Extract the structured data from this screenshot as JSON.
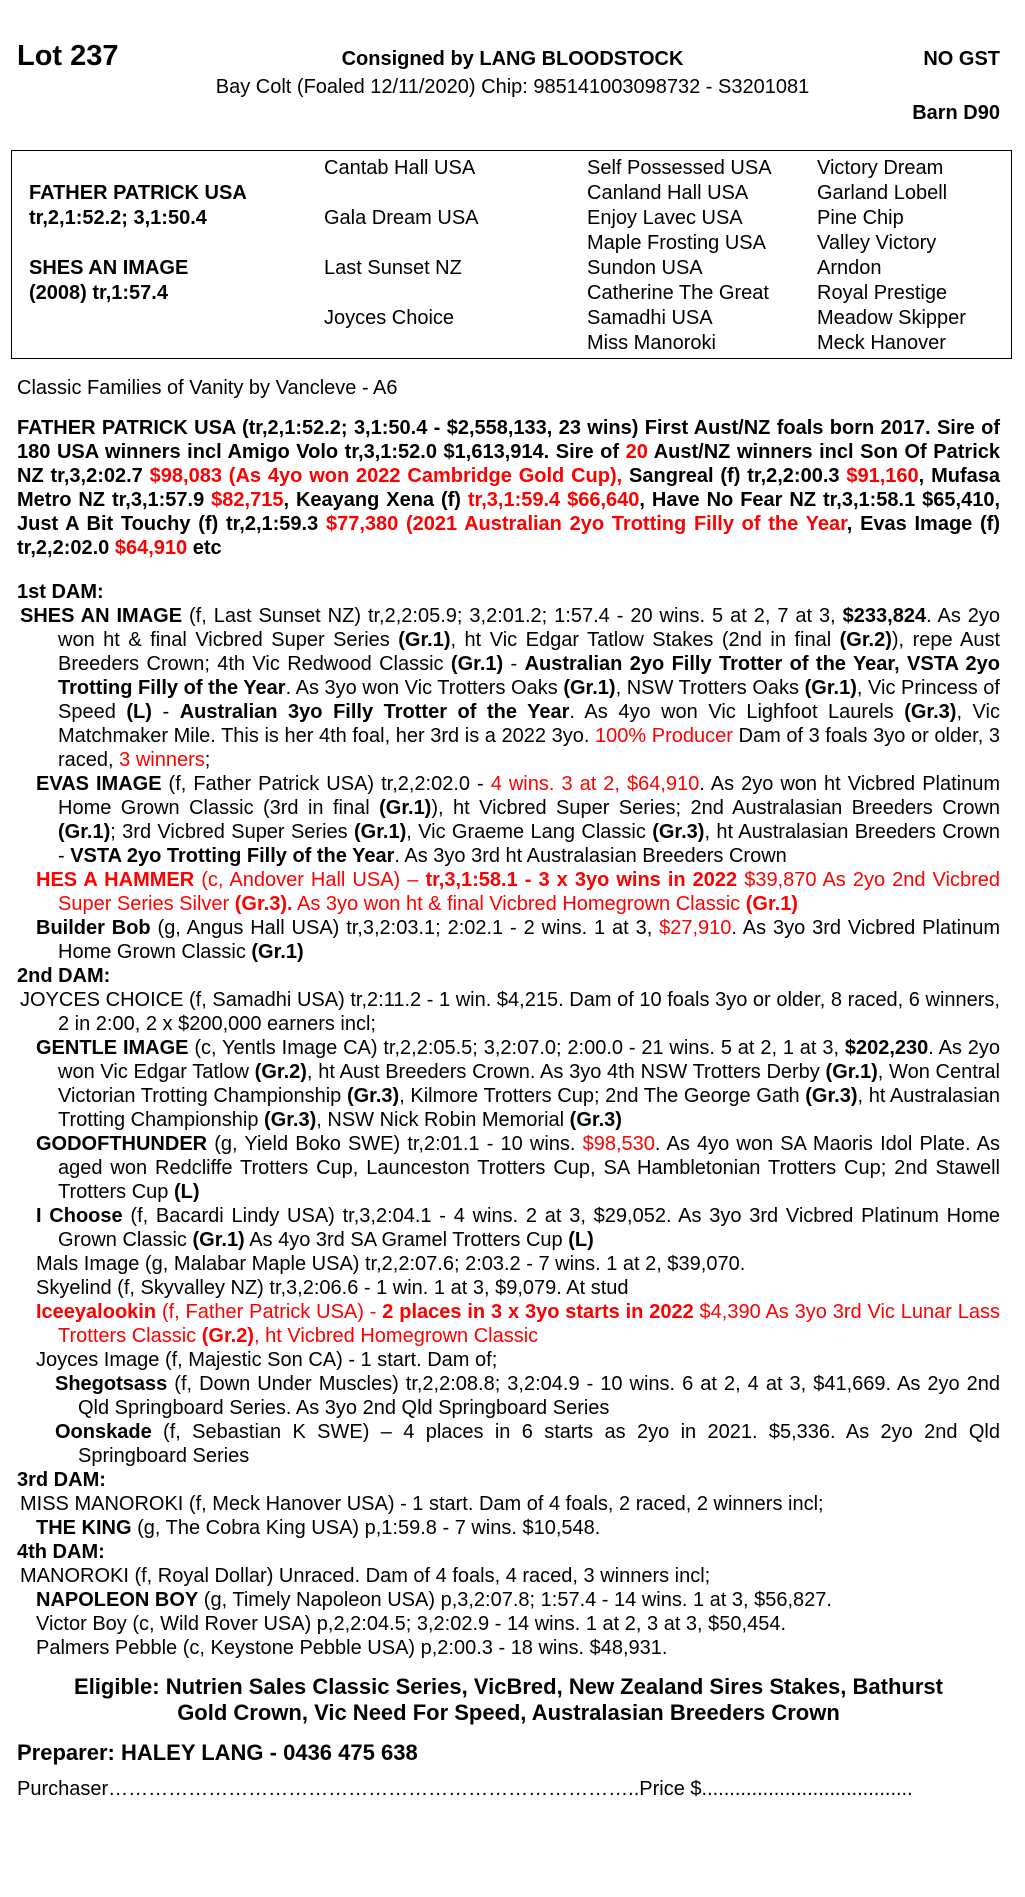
{
  "header": {
    "lot": "Lot 237",
    "consigned": "Consigned by LANG BLOODSTOCK",
    "gst": "NO GST",
    "description": "Bay Colt (Foaled 12/11/2020) Chip: 985141003098732 - S3201081",
    "barn": "Barn D90"
  },
  "pedigree": {
    "sire_name": "FATHER PATRICK USA",
    "sire_record": "tr,2,1:52.2; 3,1:50.4",
    "dam_name": "SHES AN IMAGE",
    "dam_record": "(2008) tr,1:57.4",
    "gen2": [
      "Cantab Hall USA",
      "Gala Dream USA",
      "Last Sunset NZ",
      "Joyces Choice"
    ],
    "gen3": [
      "Self Possessed USA",
      "Canland Hall USA",
      "Enjoy Lavec USA",
      "Maple Frosting USA",
      "Sundon USA",
      "Catherine The Great",
      "Samadhi USA",
      "Miss Manoroki"
    ],
    "gen4": [
      "Victory Dream",
      "Garland Lobell",
      "Pine Chip",
      "Valley Victory",
      "Arndon",
      "Royal Prestige",
      "Meadow Skipper",
      "Meck Hanover"
    ]
  },
  "family": "Classic Families of Vanity by Vancleve - A6",
  "sire_paragraph": [
    [
      "b",
      "FATHER PATRICK USA (tr,2,1:52.2; 3,1:50.4 - $2,558,133, 23 wins) First Aust/NZ foals born 2017. Sire of 180 USA winners incl Amigo Volo tr,3,1:52.0 $1,613,914. Sire of "
    ],
    [
      "br",
      "20"
    ],
    [
      "b",
      " Aust/NZ winners incl Son Of Patrick NZ tr,3,2:02.7 "
    ],
    [
      "br",
      "$98,083 (As 4yo won 2022 Cambridge Gold Cup),"
    ],
    [
      "b",
      " Sangreal (f) tr,2,2:00.3 "
    ],
    [
      "br",
      "$91,160"
    ],
    [
      "b",
      ", Mufasa Metro NZ tr,3,1:57.9 "
    ],
    [
      "br",
      "$82,715"
    ],
    [
      "b",
      ", Keayang Xena (f) "
    ],
    [
      "br",
      "tr,3,1:59.4 $66,640"
    ],
    [
      "b",
      ", Have No Fear NZ tr,3,1:58.1 $65,410, Just A Bit Touchy (f) tr,2,1:59.3 "
    ],
    [
      "br",
      "$77,380 (2021 Australian 2yo Trotting Filly of the Year"
    ],
    [
      "b",
      ", Evas Image (f) tr,2,2:02.0 "
    ],
    [
      "br",
      "$64,910"
    ],
    [
      "b",
      " etc"
    ]
  ],
  "sections": [
    {
      "heading": "1st DAM:",
      "entries": [
        {
          "level": 0,
          "segs": [
            [
              "b",
              "SHES AN IMAGE"
            ],
            [
              "",
              " (f, Last Sunset NZ) tr,2,2:05.9; 3,2:01.2; 1:57.4 - 20 wins. 5 at 2, 7 at 3, "
            ],
            [
              "b",
              "$233,824"
            ],
            [
              "",
              ". As 2yo won ht & final Vicbred Super Series "
            ],
            [
              "b",
              "(Gr.1)"
            ],
            [
              "",
              ", ht Vic Edgar Tatlow Stakes (2nd in final "
            ],
            [
              "b",
              "(Gr.2)"
            ],
            [
              "",
              "), repe Aust Breeders Crown; 4th Vic Redwood Classic "
            ],
            [
              "b",
              "(Gr.1)"
            ],
            [
              "",
              " - "
            ],
            [
              "b",
              "Australian 2yo Filly Trotter of the Year, VSTA 2yo Trotting Filly of the Year"
            ],
            [
              "",
              ". As 3yo won Vic Trotters Oaks "
            ],
            [
              "b",
              "(Gr.1)"
            ],
            [
              "",
              ", NSW Trotters Oaks "
            ],
            [
              "b",
              "(Gr.1)"
            ],
            [
              "",
              ", Vic Princess of Speed "
            ],
            [
              "b",
              "(L)"
            ],
            [
              "",
              " - "
            ],
            [
              "b",
              "Australian 3yo Filly Trotter of the Year"
            ],
            [
              "",
              ". As 4yo won Vic Lighfoot Laurels "
            ],
            [
              "b",
              "(Gr.3)"
            ],
            [
              "",
              ", Vic Matchmaker Mile. This is her 4th foal, her 3rd is a 2022 3yo. "
            ],
            [
              "r",
              "100% Producer"
            ],
            [
              "",
              " Dam of 3 foals 3yo or older, 3 raced, "
            ],
            [
              "r",
              "3 winners"
            ],
            [
              "",
              ";"
            ]
          ]
        },
        {
          "level": 1,
          "segs": [
            [
              "b",
              "EVAS IMAGE"
            ],
            [
              "",
              " (f, Father Patrick USA) tr,2,2:02.0 - "
            ],
            [
              "r",
              "4 wins. 3 at 2, $64,910"
            ],
            [
              "",
              ". As 2yo won ht Vicbred Platinum Home Grown Classic (3rd in final "
            ],
            [
              "b",
              "(Gr.1)"
            ],
            [
              "",
              "), ht Vicbred Super Series; 2nd Australasian Breeders Crown "
            ],
            [
              "b",
              "(Gr.1)"
            ],
            [
              "",
              "; 3rd Vicbred Super Series "
            ],
            [
              "b",
              "(Gr.1)"
            ],
            [
              "",
              ", Vic Graeme Lang Classic "
            ],
            [
              "b",
              "(Gr.3)"
            ],
            [
              "",
              ", ht Australasian Breeders Crown - "
            ],
            [
              "b",
              "VSTA 2yo Trotting Filly of the Year"
            ],
            [
              "",
              ". As 3yo 3rd ht Australasian Breeders Crown"
            ]
          ]
        },
        {
          "level": 1,
          "segs": [
            [
              "br",
              "HES A HAMMER"
            ],
            [
              "r",
              " (c, Andover Hall USA) – "
            ],
            [
              "br",
              "tr,3,1:58.1 - 3 x 3yo wins in 2022"
            ],
            [
              "r",
              " $39,870 As 2yo 2nd Vicbred Super Series Silver "
            ],
            [
              "br",
              "(Gr.3)."
            ],
            [
              "r",
              " As 3yo won ht & final Vicbred Homegrown Classic "
            ],
            [
              "br",
              "(Gr.1)"
            ]
          ]
        },
        {
          "level": 1,
          "segs": [
            [
              "b",
              "Builder Bob"
            ],
            [
              "",
              " (g, Angus Hall USA) tr,3,2:03.1; 2:02.1 - 2 wins. 1 at 3, "
            ],
            [
              "r",
              "$27,910"
            ],
            [
              "",
              ". As 3yo 3rd Vicbred Platinum Home Grown Classic "
            ],
            [
              "b",
              "(Gr.1)"
            ]
          ]
        }
      ]
    },
    {
      "heading": "2nd DAM:",
      "entries": [
        {
          "level": 0,
          "segs": [
            [
              "",
              "JOYCES CHOICE (f, Samadhi USA) tr,2:11.2 - 1 win. $4,215. Dam of 10 foals 3yo or older, 8 raced, 6 winners, 2 in 2:00, 2 x $200,000 earners incl;"
            ]
          ]
        },
        {
          "level": 1,
          "segs": [
            [
              "b",
              "GENTLE IMAGE"
            ],
            [
              "",
              " (c, Yentls Image CA) tr,2,2:05.5; 3,2:07.0; 2:00.0 - 21 wins. 5 at 2, 1 at 3, "
            ],
            [
              "b",
              "$202,230"
            ],
            [
              "",
              ". As 2yo won Vic Edgar Tatlow "
            ],
            [
              "b",
              "(Gr.2)"
            ],
            [
              "",
              ", ht Aust Breeders Crown. As 3yo 4th NSW Trotters Derby "
            ],
            [
              "b",
              "(Gr.1)"
            ],
            [
              "",
              ", Won Central Victorian Trotting Championship "
            ],
            [
              "b",
              "(Gr.3)"
            ],
            [
              "",
              ", Kilmore Trotters Cup; 2nd The George Gath "
            ],
            [
              "b",
              "(Gr.3)"
            ],
            [
              "",
              ", ht Australasian Trotting Championship "
            ],
            [
              "b",
              "(Gr.3)"
            ],
            [
              "",
              ", NSW Nick Robin Memorial "
            ],
            [
              "b",
              "(Gr.3)"
            ]
          ]
        },
        {
          "level": 1,
          "segs": [
            [
              "b",
              "GODOFTHUNDER"
            ],
            [
              "",
              " (g, Yield Boko SWE) tr,2:01.1 - 10 wins. "
            ],
            [
              "r",
              "$98,530"
            ],
            [
              "",
              ". As 4yo won SA Maoris Idol Plate. As aged won Redcliffe Trotters Cup, Launceston Trotters Cup, SA Hambletonian Trotters Cup; 2nd Stawell Trotters Cup "
            ],
            [
              "b",
              "(L)"
            ]
          ]
        },
        {
          "level": 1,
          "segs": [
            [
              "b",
              "I Choose"
            ],
            [
              "",
              " (f, Bacardi Lindy USA) tr,3,2:04.1 - 4 wins. 2 at 3, $29,052. As 3yo 3rd Vicbred Platinum Home Grown Classic "
            ],
            [
              "b",
              "(Gr.1)"
            ],
            [
              "",
              " As 4yo 3rd SA Gramel Trotters Cup "
            ],
            [
              "b",
              "(L)"
            ]
          ]
        },
        {
          "level": 1,
          "segs": [
            [
              "",
              "Mals Image (g, Malabar Maple USA) tr,2,2:07.6; 2:03.2 - 7 wins. 1 at 2, $39,070."
            ]
          ]
        },
        {
          "level": 1,
          "segs": [
            [
              "",
              "Skyelind (f, Skyvalley NZ) tr,3,2:06.6 - 1 win. 1 at 3, $9,079. At stud"
            ]
          ]
        },
        {
          "level": 1,
          "segs": [
            [
              "br",
              "Iceeyalookin"
            ],
            [
              "r",
              " (f, Father Patrick USA) - "
            ],
            [
              "br",
              "2 places in 3 x 3yo starts in 2022"
            ],
            [
              "r",
              " $4,390 As 3yo 3rd Vic Lunar Lass Trotters Classic "
            ],
            [
              "br",
              "(Gr.2)"
            ],
            [
              "r",
              ", ht Vicbred Homegrown Classic"
            ]
          ]
        },
        {
          "level": 1,
          "segs": [
            [
              "",
              "Joyces Image (f, Majestic Son CA) - 1 start. Dam of;"
            ]
          ]
        },
        {
          "level": 2,
          "segs": [
            [
              "b",
              "Shegotsass"
            ],
            [
              "",
              " (f, Down Under Muscles) tr,2,2:08.8; 3,2:04.9 - 10 wins. 6 at 2, 4 at 3, $41,669. As 2yo 2nd Qld Springboard Series. As 3yo 2nd Qld Springboard Series"
            ]
          ]
        },
        {
          "level": 2,
          "segs": [
            [
              "b",
              "Oonskade"
            ],
            [
              "",
              " (f, Sebastian K SWE) – 4 places in 6 starts as 2yo in 2021. $5,336. As 2yo 2nd Qld Springboard Series"
            ]
          ]
        }
      ]
    },
    {
      "heading": "3rd DAM:",
      "entries": [
        {
          "level": 0,
          "segs": [
            [
              "",
              "MISS MANOROKI (f, Meck Hanover USA) - 1 start. Dam of 4 foals, 2 raced, 2 winners incl;"
            ]
          ]
        },
        {
          "level": 1,
          "segs": [
            [
              "b",
              "THE KING"
            ],
            [
              "",
              " (g, The Cobra King USA) p,1:59.8 - 7 wins. $10,548."
            ]
          ]
        }
      ]
    },
    {
      "heading": "4th DAM:",
      "entries": [
        {
          "level": 0,
          "segs": [
            [
              "",
              "MANOROKI (f, Royal Dollar) Unraced. Dam of 4 foals, 4 raced, 3 winners incl;"
            ]
          ]
        },
        {
          "level": 1,
          "segs": [
            [
              "b",
              "NAPOLEON BOY"
            ],
            [
              "",
              " (g, Timely Napoleon USA) p,3,2:07.8; 1:57.4 - 14 wins. 1 at 3, $56,827."
            ]
          ]
        },
        {
          "level": 1,
          "segs": [
            [
              "",
              "Victor Boy (c, Wild Rover USA) p,2,2:04.5; 3,2:02.9 - 14 wins. 1 at 2, 3 at 3, $50,454."
            ]
          ]
        },
        {
          "level": 1,
          "segs": [
            [
              "",
              "Palmers Pebble (c, Keystone Pebble USA) p,2:00.3 - 18 wins. $48,931."
            ]
          ]
        }
      ]
    }
  ],
  "eligible": [
    "Eligible: Nutrien Sales Classic Series, VicBred, New Zealand Sires Stakes, Bathurst",
    "Gold Crown, Vic Need For Speed, Australasian Breeders Crown"
  ],
  "preparer": "Preparer: HALEY LANG - 0436 475 638",
  "purchaser": {
    "label": "Purchaser……………………………………………………………………..",
    "price_label": "Price $......................................"
  },
  "colors": {
    "highlight": "#ff0000",
    "text": "#000000"
  }
}
